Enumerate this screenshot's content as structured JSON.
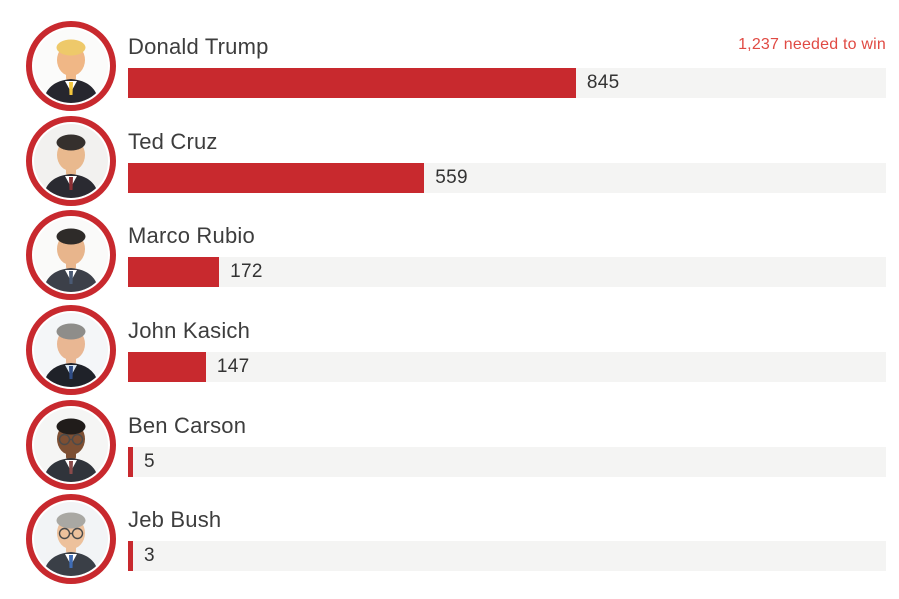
{
  "page": {
    "background": "#ffffff"
  },
  "colors": {
    "bar_red": "#c8292e",
    "track_gray": "#f4f4f3",
    "annotation_red": "#e04a43",
    "name_gray": "#3d3d3d",
    "value_gray": "#333333",
    "avatar_ring_red": "#c8292e"
  },
  "chart_data": {
    "type": "bar",
    "orientation": "horizontal",
    "title": "",
    "annotation": "1,237 needed to win",
    "needed_to_win": 1237,
    "xlim": [
      0,
      1430
    ],
    "grid": false,
    "legend": false,
    "categories": [
      "Donald Trump",
      "Ted Cruz",
      "Marco Rubio",
      "John Kasich",
      "Ben Carson",
      "Jeb Bush"
    ],
    "values": [
      845,
      559,
      172,
      147,
      5,
      3
    ],
    "candidates": [
      {
        "name": "Donald Trump",
        "delegates": 845,
        "avatar": {
          "icon": "portrait-donald-trump",
          "bg": "#fbfbfa",
          "skin": "#f0b786",
          "hair": "#eec96a",
          "suit": "#26262e",
          "shirt": "#ffffff",
          "tie": "#f2c53d",
          "glasses": false
        }
      },
      {
        "name": "Ted Cruz",
        "delegates": 559,
        "avatar": {
          "icon": "portrait-ted-cruz",
          "bg": "#f2f1ef",
          "skin": "#e9b98e",
          "hair": "#35302d",
          "suit": "#2a2a31",
          "shirt": "#ffffff",
          "tie": "#8c2f34",
          "glasses": false
        }
      },
      {
        "name": "Marco Rubio",
        "delegates": 172,
        "avatar": {
          "icon": "portrait-marco-rubio",
          "bg": "#fafaf9",
          "skin": "#e8b58c",
          "hair": "#2e2b29",
          "suit": "#3c4049",
          "shirt": "#ffffff",
          "tie": "#4a5a74",
          "glasses": false
        }
      },
      {
        "name": "John Kasich",
        "delegates": 147,
        "avatar": {
          "icon": "portrait-john-kasich",
          "bg": "#f4f6f8",
          "skin": "#e9b793",
          "hair": "#8e8d8a",
          "suit": "#1f2229",
          "shirt": "#d8e6f2",
          "tie": "#2f4d86",
          "glasses": false
        }
      },
      {
        "name": "Ben Carson",
        "delegates": 5,
        "avatar": {
          "icon": "portrait-ben-carson",
          "bg": "#f5f5f4",
          "skin": "#7d4f33",
          "hair": "#201c1a",
          "suit": "#30343b",
          "shirt": "#ffffff",
          "tie": "#8a4a4a",
          "glasses": true
        }
      },
      {
        "name": "Jeb Bush",
        "delegates": 3,
        "avatar": {
          "icon": "portrait-jeb-bush",
          "bg": "#f2f4f6",
          "skin": "#edc19c",
          "hair": "#a9a8a3",
          "suit": "#3a3f47",
          "shirt": "#ffffff",
          "tie": "#3f6cb4",
          "glasses": true
        }
      }
    ]
  }
}
